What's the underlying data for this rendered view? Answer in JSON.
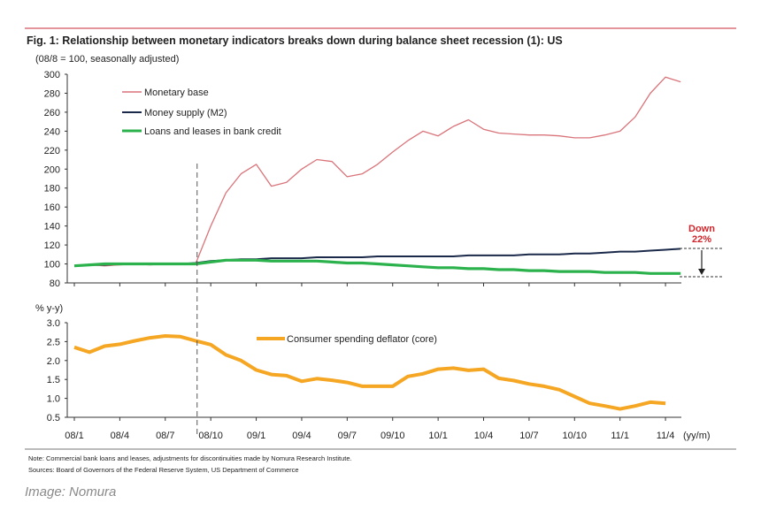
{
  "chart_data": [
    {
      "type": "line",
      "title": "Fig. 1:  Relationship between monetary indicators breaks down during balance sheet recession (1): US",
      "ylabel": "(08/8 = 100, seasonally adjusted)",
      "ylim": [
        80,
        300
      ],
      "yticks": [
        "80",
        "100",
        "120",
        "140",
        "160",
        "180",
        "200",
        "220",
        "240",
        "260",
        "280",
        "300"
      ],
      "legend_placement": "top-left",
      "x_start": "08/1",
      "annotation": {
        "text1": "Down",
        "text2": "22%",
        "color": "#d0252b"
      },
      "series": [
        {
          "name": "Monetary base",
          "color": "#d9747a",
          "values": [
            98,
            99,
            98,
            99,
            100,
            99,
            100,
            100,
            100,
            140,
            175,
            195,
            205,
            182,
            186,
            200,
            210,
            208,
            192,
            195,
            205,
            218,
            230,
            240,
            235,
            245,
            252,
            242,
            238,
            237,
            236,
            236,
            235,
            233,
            233,
            236,
            240,
            255,
            280,
            297,
            292
          ]
        },
        {
          "name": "Money supply (M2)",
          "color": "#1b2a4a",
          "values": [
            98,
            99,
            99,
            100,
            100,
            100,
            100,
            100,
            101,
            103,
            104,
            105,
            105,
            106,
            106,
            106,
            107,
            107,
            107,
            107,
            108,
            108,
            108,
            108,
            108,
            108,
            109,
            109,
            109,
            109,
            110,
            110,
            110,
            111,
            111,
            112,
            113,
            113,
            114,
            115,
            116
          ]
        },
        {
          "name": "Loans and leases in bank credit",
          "color": "#2bb24c",
          "values": [
            98,
            99,
            100,
            100,
            100,
            100,
            100,
            100,
            100,
            102,
            104,
            104,
            104,
            103,
            103,
            103,
            103,
            102,
            101,
            101,
            100,
            99,
            98,
            97,
            96,
            96,
            95,
            95,
            94,
            94,
            93,
            93,
            92,
            92,
            92,
            91,
            91,
            91,
            90,
            90,
            90
          ]
        }
      ]
    },
    {
      "type": "line",
      "ylabel": "% y-y)",
      "ylim": [
        0.5,
        3.0
      ],
      "yticks": [
        "0.5",
        "1.0",
        "1.5",
        "2.0",
        "2.5",
        "3.0"
      ],
      "xlabel": "(yy/m)",
      "xticks": [
        "08/1",
        "08/4",
        "08/7",
        "08/10",
        "09/1",
        "09/4",
        "09/7",
        "09/10",
        "10/1",
        "10/4",
        "10/7",
        "10/10",
        "11/1",
        "11/4"
      ],
      "x_start": "08/1",
      "vertical_marker": "08/9",
      "series": [
        {
          "name": "Consumer spending deflator (core)",
          "color": "#f5a623",
          "values": [
            2.35,
            2.22,
            2.38,
            2.43,
            2.52,
            2.6,
            2.65,
            2.63,
            2.52,
            2.42,
            2.15,
            2.0,
            1.75,
            1.63,
            1.6,
            1.45,
            1.52,
            1.48,
            1.42,
            1.32,
            1.32,
            1.32,
            1.58,
            1.65,
            1.77,
            1.8,
            1.74,
            1.77,
            1.53,
            1.47,
            1.38,
            1.32,
            1.23,
            1.05,
            0.87,
            0.8,
            0.72,
            0.8,
            0.9,
            0.87
          ]
        }
      ]
    }
  ],
  "notes": {
    "note": "Note: Commercial bank loans and leases, adjustments for discontinuities made by Nomura Research Institute.",
    "sources": "Sources: Board of Governors of the Federal Reserve System, US Department of Commerce"
  },
  "credit": "Image: Nomura"
}
